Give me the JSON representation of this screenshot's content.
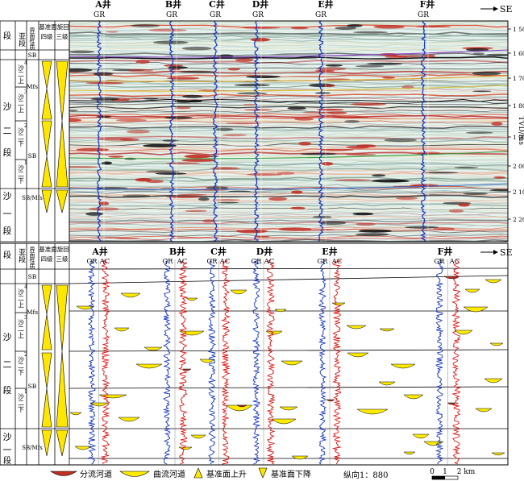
{
  "direction": "SE",
  "wells": [
    {
      "name": "A井",
      "top_logs": "GR",
      "bottom_logs": [
        "GR",
        "AC"
      ]
    },
    {
      "name": "B井",
      "top_logs": "GR",
      "bottom_logs": [
        "GR",
        "AC"
      ]
    },
    {
      "name": "C井",
      "top_logs": "GR",
      "bottom_logs": [
        "GR",
        "AC"
      ]
    },
    {
      "name": "D井",
      "top_logs": "GR",
      "bottom_logs": [
        "GR",
        "AC"
      ]
    },
    {
      "name": "E井",
      "top_logs": "GR",
      "bottom_logs": [
        "GR",
        "AC"
      ]
    },
    {
      "name": "F井",
      "top_logs": "GR",
      "bottom_logs": [
        "GR",
        "AC"
      ]
    }
  ],
  "column_headers": {
    "duan": "段",
    "yaduan": "亚段",
    "boundary": "界面性质",
    "cycle_title": "基准面旋回",
    "level4": "四级",
    "level3": "三级"
  },
  "strat": {
    "duan_sha2": [
      "沙",
      "二",
      "段"
    ],
    "duan_sha1": [
      "沙",
      "一",
      "段"
    ],
    "sub_top": "沙二上",
    "sub_bottom": "沙二下",
    "sup4": "4",
    "sup3": "3",
    "sup2": "2",
    "sup1": "1",
    "sb": "SB",
    "mfs": "Mfs",
    "sb_mfs": "SB/Mfs"
  },
  "depth_axis": {
    "label": "TVD/ms",
    "ticks": [
      "1 500",
      "1 600",
      "1 700",
      "1 800",
      "1 900",
      "2 000",
      "2 100",
      "2 200"
    ]
  },
  "legend": {
    "distributary": "分流河道",
    "meandering": "曲流河道",
    "rising": "基准面上升",
    "falling": "基准面下降",
    "scale": "纵向1：880",
    "km0": "0",
    "km1": "1",
    "km2": "2 km"
  },
  "colors": {
    "seismic_bg": "#e6f2ef",
    "gr_log": "#1030c0",
    "ac_log": "#e01010",
    "channel_fill": "#ffeb00",
    "distributary_fill": "#c03020",
    "triangle_fill": "#ffe600"
  }
}
